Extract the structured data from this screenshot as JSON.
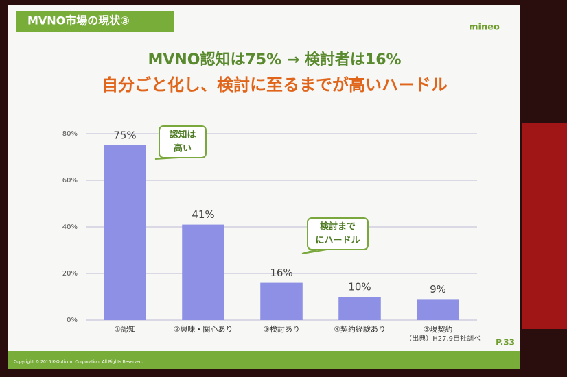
{
  "slide": {
    "header": "MVNO市場の現状③",
    "logo": "mineo",
    "source": "（出典）H27.9自社調べ",
    "page": "P.33",
    "copyright": "Copyright © 2016 K-Opticom Corporation. All Rights Reserved."
  },
  "chart_data": {
    "type": "bar",
    "title": "MVNO認知は75% → 検討者は16%",
    "subtitle": "自分ごと化し、検討に至るまでが高いハードル",
    "categories": [
      "①認知",
      "②興味・関心あり",
      "③検討あり",
      "④契約経験あり",
      "⑤現契約"
    ],
    "values": [
      75,
      41,
      16,
      10,
      9
    ],
    "value_labels": [
      "75%",
      "41%",
      "16%",
      "10%",
      "9%"
    ],
    "color": "#8d90e4",
    "ylim": [
      0,
      80
    ],
    "yticks": [
      {
        "value": 0,
        "label": "0%"
      },
      {
        "value": 20,
        "label": "20%"
      },
      {
        "value": 40,
        "label": "40%"
      },
      {
        "value": 60,
        "label": "60%"
      },
      {
        "value": 80,
        "label": "80%"
      }
    ],
    "grid": true,
    "annotations": [
      {
        "lines": [
          "認知は",
          "高い"
        ]
      },
      {
        "lines": [
          "検討まで",
          "にハードル"
        ]
      }
    ]
  }
}
